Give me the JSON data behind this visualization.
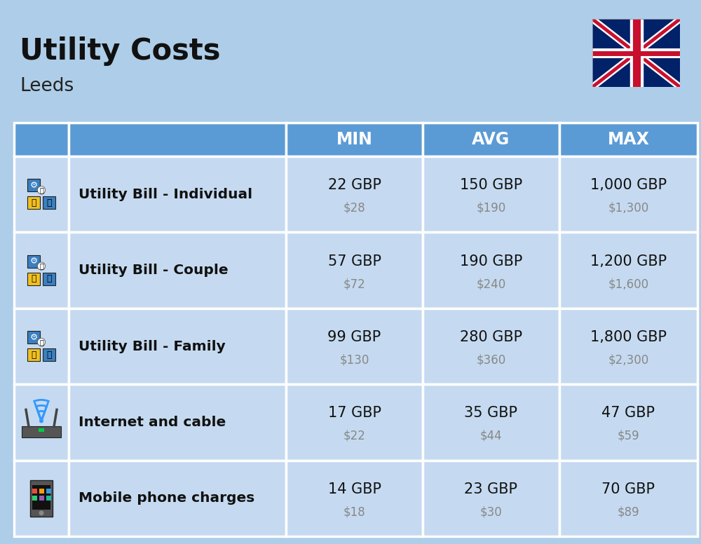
{
  "title": "Utility Costs",
  "subtitle": "Leeds",
  "background_color": "#aecde8",
  "header_bg_color": "#5b9bd5",
  "header_text_color": "#ffffff",
  "row_bg_color": "#c5daf0",
  "cell_border_color": "#ffffff",
  "col_headers": [
    "MIN",
    "AVG",
    "MAX"
  ],
  "rows": [
    {
      "label": "Utility Bill - Individual",
      "min_gbp": "22 GBP",
      "min_usd": "$28",
      "avg_gbp": "150 GBP",
      "avg_usd": "$190",
      "max_gbp": "1,000 GBP",
      "max_usd": "$1,300"
    },
    {
      "label": "Utility Bill - Couple",
      "min_gbp": "57 GBP",
      "min_usd": "$72",
      "avg_gbp": "190 GBP",
      "avg_usd": "$240",
      "max_gbp": "1,200 GBP",
      "max_usd": "$1,600"
    },
    {
      "label": "Utility Bill - Family",
      "min_gbp": "99 GBP",
      "min_usd": "$130",
      "avg_gbp": "280 GBP",
      "avg_usd": "$360",
      "max_gbp": "1,800 GBP",
      "max_usd": "$2,300"
    },
    {
      "label": "Internet and cable",
      "min_gbp": "17 GBP",
      "min_usd": "$22",
      "avg_gbp": "35 GBP",
      "avg_usd": "$44",
      "max_gbp": "47 GBP",
      "max_usd": "$59"
    },
    {
      "label": "Mobile phone charges",
      "min_gbp": "14 GBP",
      "min_usd": "$18",
      "avg_gbp": "23 GBP",
      "avg_usd": "$30",
      "max_gbp": "70 GBP",
      "max_usd": "$89"
    }
  ]
}
